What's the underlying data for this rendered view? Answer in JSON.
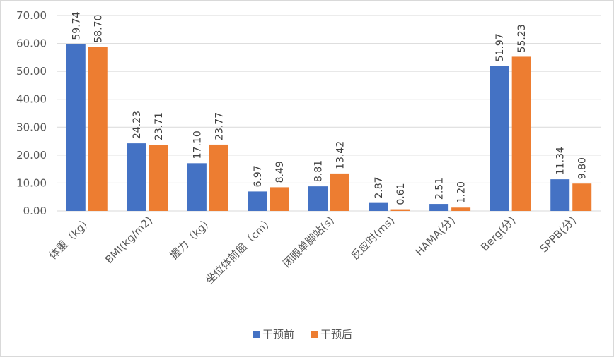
{
  "chart_data": {
    "type": "bar",
    "categories": [
      "体重（kg）",
      "BMI(kg/m2)",
      "握力（kg）",
      "坐位体前屈（cm）",
      "闭眼单脚站(s)",
      "反应时(ms)",
      "HAMA(分)",
      "Berg(分)",
      "SPPB(分)"
    ],
    "series": [
      {
        "name": "干预前",
        "color": "#4472c4",
        "values": [
          59.74,
          24.23,
          17.1,
          6.97,
          8.81,
          2.87,
          2.51,
          51.97,
          11.34
        ],
        "value_labels": [
          "59.74",
          "24.23",
          "17.10",
          "6.97",
          "8.81",
          "2.87",
          "2.51",
          "51.97",
          "11.34"
        ]
      },
      {
        "name": "干预后",
        "color": "#ed7d31",
        "values": [
          58.7,
          23.71,
          23.77,
          8.49,
          13.42,
          0.61,
          1.2,
          55.23,
          9.8
        ],
        "value_labels": [
          "58.70",
          "23.71",
          "23.77",
          "8.49",
          "13.42",
          "0.61",
          "1.20",
          "55.23",
          "9.80"
        ]
      }
    ],
    "ylim": [
      0,
      70
    ],
    "yticks": [
      {
        "value": 0,
        "label": "0.00"
      },
      {
        "value": 10,
        "label": "10.00"
      },
      {
        "value": 20,
        "label": "20.00"
      },
      {
        "value": 30,
        "label": "30.00"
      },
      {
        "value": 40,
        "label": "40.00"
      },
      {
        "value": 50,
        "label": "50.00"
      },
      {
        "value": 60,
        "label": "60.00"
      },
      {
        "value": 70,
        "label": "70.00"
      }
    ],
    "grid": true,
    "legend": "bottom"
  }
}
